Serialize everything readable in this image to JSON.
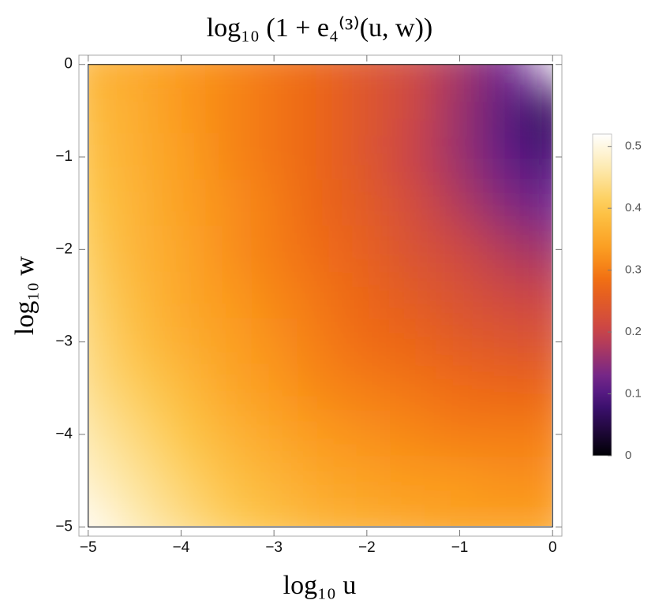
{
  "chart_data": {
    "type": "heatmap",
    "title": "log₁₀ (1 + e₄⁽³⁾(u, w))",
    "x_label": "log₁₀ u",
    "y_label": "log₁₀ w",
    "x": [
      -5,
      -4.5,
      -4,
      -3.5,
      -3,
      -2.5,
      -2,
      -1.5,
      -1,
      -0.5,
      0
    ],
    "y": [
      0,
      -0.5,
      -1,
      -1.5,
      -2,
      -2.5,
      -3,
      -3.5,
      -4,
      -4.5,
      -5
    ],
    "z": [
      [
        0.37,
        0.35,
        0.33,
        0.31,
        0.29,
        0.27,
        0.24,
        0.21,
        0.17,
        0.12,
        null
      ],
      [
        0.38,
        0.36,
        0.33,
        0.31,
        0.29,
        0.27,
        0.24,
        0.21,
        0.16,
        0.1,
        0.06
      ],
      [
        0.39,
        0.36,
        0.34,
        0.31,
        0.29,
        0.27,
        0.24,
        0.2,
        0.16,
        0.11,
        0.08
      ],
      [
        0.4,
        0.37,
        0.34,
        0.32,
        0.3,
        0.27,
        0.25,
        0.22,
        0.18,
        0.14,
        0.12
      ],
      [
        0.41,
        0.37,
        0.35,
        0.32,
        0.3,
        0.28,
        0.26,
        0.23,
        0.21,
        0.18,
        0.16
      ],
      [
        0.42,
        0.38,
        0.35,
        0.33,
        0.31,
        0.29,
        0.27,
        0.25,
        0.23,
        0.21,
        0.2
      ],
      [
        0.43,
        0.39,
        0.36,
        0.34,
        0.32,
        0.3,
        0.28,
        0.27,
        0.25,
        0.24,
        0.23
      ],
      [
        0.44,
        0.41,
        0.38,
        0.35,
        0.33,
        0.31,
        0.3,
        0.29,
        0.28,
        0.27,
        0.27
      ],
      [
        0.46,
        0.43,
        0.4,
        0.37,
        0.35,
        0.33,
        0.32,
        0.31,
        0.3,
        0.3,
        0.3
      ],
      [
        0.48,
        0.45,
        0.42,
        0.39,
        0.37,
        0.35,
        0.34,
        0.33,
        0.33,
        0.32,
        0.32
      ],
      [
        0.51,
        0.47,
        0.44,
        0.41,
        0.39,
        0.37,
        0.36,
        0.35,
        0.34,
        0.34,
        0.34
      ]
    ],
    "xlim": [
      -5.1,
      0.1
    ],
    "ylim": [
      -5.1,
      0.1
    ],
    "xticks": [
      {
        "value": -5,
        "label": "−5"
      },
      {
        "value": -4,
        "label": "−4"
      },
      {
        "value": -3,
        "label": "−3"
      },
      {
        "value": -2,
        "label": "−2"
      },
      {
        "value": -1,
        "label": "−1"
      },
      0
    ],
    "yticks": [
      {
        "value": -5,
        "label": "−5"
      },
      {
        "value": -4,
        "label": "−4"
      },
      {
        "value": -3,
        "label": "−3"
      },
      {
        "value": -2,
        "label": "−2"
      },
      {
        "value": -1,
        "label": "−1"
      },
      0
    ],
    "zlim": [
      0,
      0.52
    ],
    "zticks": [
      0,
      0.1,
      0.2,
      0.3,
      0.4,
      0.5
    ]
  }
}
